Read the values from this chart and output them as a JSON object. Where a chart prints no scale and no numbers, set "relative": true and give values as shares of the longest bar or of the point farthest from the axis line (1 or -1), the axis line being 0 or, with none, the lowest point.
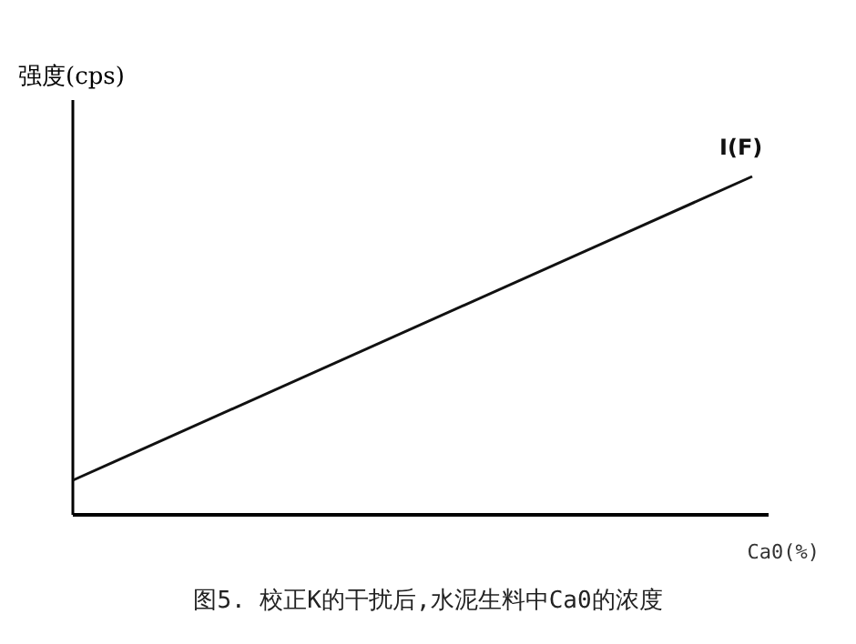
{
  "chart_data": {
    "type": "line",
    "title": "图5.  校正K的干扰后,水泥生料中Ca0的浓度",
    "ylabel": "强度(cps)",
    "xlabel": "Ca0(%)",
    "relative": true,
    "categories": [
      null,
      null
    ],
    "series": [
      {
        "name": "I(F)",
        "color": "#111111",
        "values": [
          0.102,
          1
        ]
      }
    ]
  }
}
